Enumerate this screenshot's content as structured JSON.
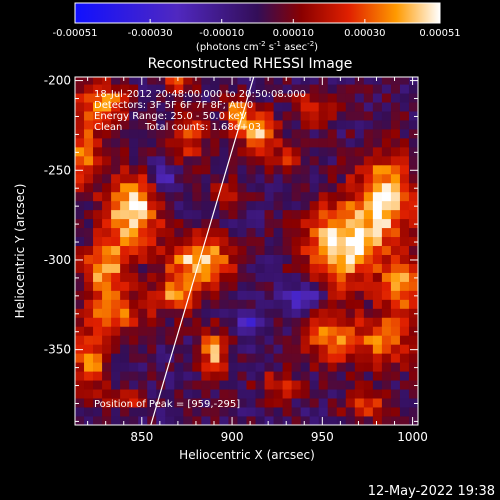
{
  "chart_data": {
    "type": "heatmap",
    "title": "Reconstructed RHESSI Image",
    "xlabel": "Heliocentric X (arcsec)",
    "ylabel": "Heliocentric Y (arcsec)",
    "xlim": [
      813,
      1003
    ],
    "ylim": [
      -392,
      -198
    ],
    "x_ticks": [
      850,
      900,
      950,
      1000
    ],
    "x_tick_labels": [
      "850",
      "900",
      "950",
      "1000"
    ],
    "y_ticks": [
      -200,
      -250,
      -300,
      -350
    ],
    "y_tick_labels": [
      "-200",
      "-250",
      "-300",
      "-350"
    ],
    "colorbar": {
      "min": -0.00051,
      "max": 0.00051,
      "ticks": [
        -0.00051,
        -0.0003,
        -0.0001,
        0.0001,
        0.0003,
        0.00051
      ],
      "tick_labels": [
        "-0.00051",
        "-0.00030",
        "-0.00010",
        "0.00010",
        "0.00030",
        "0.00051"
      ],
      "unit_main": "(photons cm",
      "unit_exp1": "-2",
      "unit_mid1": " s",
      "unit_exp2": "-1",
      "unit_mid2": " asec",
      "unit_exp3": "-2",
      "unit_end": ")",
      "colormap": "rainbow"
    },
    "annotations": {
      "time_range": "18-Jul-2012 20:48:00.000 to 20:50:08.000",
      "detectors": "Detectors: 3F 5F 6F 7F 8F; Att 0",
      "energy": "Energy Range: 25.0 - 50.0 keV",
      "method": "Clean",
      "total_counts": "Total counts: 1.68e+03",
      "peak": "Position of Peak = [959,-295]"
    },
    "limb_line": [
      [
        855,
        -392
      ],
      [
        912,
        -198
      ]
    ],
    "blobs": [
      {
        "x": 829,
        "y": -212,
        "sx": 9,
        "sy": 8,
        "v": 0.00042
      },
      {
        "x": 818,
        "y": -240,
        "sx": 6,
        "sy": 14,
        "v": 0.00035
      },
      {
        "x": 845,
        "y": -272,
        "sx": 11,
        "sy": 14,
        "v": 0.0005
      },
      {
        "x": 830,
        "y": -305,
        "sx": 9,
        "sy": 12,
        "v": 0.0004
      },
      {
        "x": 835,
        "y": -330,
        "sx": 12,
        "sy": 7,
        "v": 0.0003
      },
      {
        "x": 822,
        "y": -355,
        "sx": 7,
        "sy": 12,
        "v": 0.00036
      },
      {
        "x": 842,
        "y": -378,
        "sx": 8,
        "sy": 5,
        "v": 0.0002
      },
      {
        "x": 876,
        "y": -230,
        "sx": 7,
        "sy": 11,
        "v": 0.0003
      },
      {
        "x": 870,
        "y": -200,
        "sx": 6,
        "sy": 5,
        "v": 0.00028
      },
      {
        "x": 882,
        "y": -300,
        "sx": 13,
        "sy": 10,
        "v": 0.00046
      },
      {
        "x": 868,
        "y": -320,
        "sx": 10,
        "sy": 7,
        "v": 0.00032
      },
      {
        "x": 890,
        "y": -352,
        "sx": 6,
        "sy": 9,
        "v": 0.00038
      },
      {
        "x": 903,
        "y": -217,
        "sx": 5,
        "sy": 8,
        "v": 0.00033
      },
      {
        "x": 915,
        "y": -228,
        "sx": 7,
        "sy": 9,
        "v": 0.0004
      },
      {
        "x": 898,
        "y": -262,
        "sx": 7,
        "sy": 5,
        "v": 0.00018
      },
      {
        "x": 930,
        "y": -243,
        "sx": 6,
        "sy": 6,
        "v": 0.0002
      },
      {
        "x": 960,
        "y": -292,
        "sx": 14,
        "sy": 16,
        "v": 0.00051
      },
      {
        "x": 985,
        "y": -265,
        "sx": 12,
        "sy": 18,
        "v": 0.00046
      },
      {
        "x": 995,
        "y": -315,
        "sx": 9,
        "sy": 11,
        "v": 0.00036
      },
      {
        "x": 945,
        "y": -215,
        "sx": 8,
        "sy": 7,
        "v": 0.00026
      },
      {
        "x": 955,
        "y": -343,
        "sx": 11,
        "sy": 10,
        "v": 0.00036
      },
      {
        "x": 985,
        "y": -345,
        "sx": 11,
        "sy": 10,
        "v": 0.00033
      },
      {
        "x": 925,
        "y": -370,
        "sx": 9,
        "sy": 6,
        "v": 0.00022
      },
      {
        "x": 975,
        "y": -380,
        "sx": 9,
        "sy": 7,
        "v": 0.00028
      },
      {
        "x": 910,
        "y": -335,
        "sx": 5,
        "sy": 5,
        "v": -0.00025
      },
      {
        "x": 940,
        "y": -320,
        "sx": 7,
        "sy": 6,
        "v": -0.0003
      },
      {
        "x": 862,
        "y": -255,
        "sx": 6,
        "sy": 8,
        "v": -0.0002
      }
    ]
  },
  "footer": {
    "timestamp": "12-May-2022 19:38"
  }
}
